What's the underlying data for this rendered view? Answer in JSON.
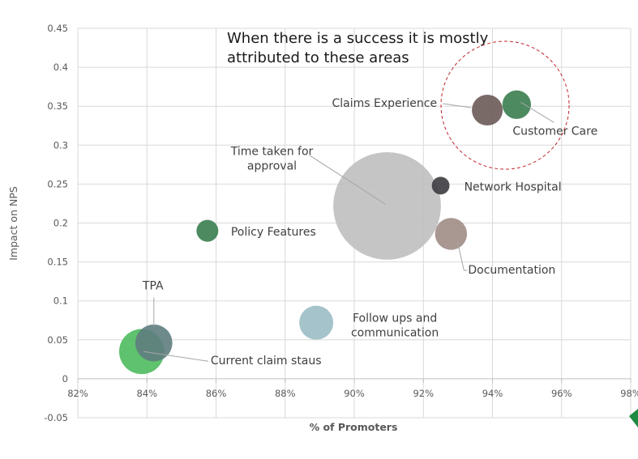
{
  "chart_data": {
    "type": "bubble",
    "title": "",
    "xlabel": "% of Promoters",
    "ylabel": "Impact on NPS",
    "xlim": [
      82,
      98
    ],
    "ylim": [
      -0.05,
      0.45
    ],
    "x_ticks": [
      82,
      84,
      86,
      88,
      90,
      92,
      94,
      96,
      98
    ],
    "x_tick_labels": [
      "82%",
      "84%",
      "86%",
      "88%",
      "90%",
      "92%",
      "94%",
      "96%",
      "98%"
    ],
    "y_ticks": [
      -0.05,
      0,
      0.05,
      0.1,
      0.15,
      0.2,
      0.25,
      0.3,
      0.35,
      0.4,
      0.45
    ],
    "y_tick_labels": [
      "-0.05",
      "0",
      "0.05",
      "0.1",
      "0.15",
      "0.2",
      "0.25",
      "0.3",
      "0.35",
      "0.4",
      "0.45"
    ],
    "grid": true,
    "annotation": [
      "When there is a success it is mostly",
      "attributed to these areas"
    ],
    "series": [
      {
        "name": "Claims Experience",
        "x": 93.85,
        "y": 0.345,
        "size": 7,
        "color": "#6b5a56",
        "label_lines": [
          "Claims Experience"
        ]
      },
      {
        "name": "Customer Care",
        "x": 94.7,
        "y": 0.352,
        "size": 6,
        "color": "#3a7d4f",
        "label_lines": [
          "Customer Care"
        ]
      },
      {
        "name": "Time taken for approval",
        "x": 90.95,
        "y": 0.222,
        "size": 85,
        "color": "#bfbfbf",
        "label_lines": [
          "Time taken for",
          "approval"
        ]
      },
      {
        "name": "Network Hospital",
        "x": 92.5,
        "y": 0.248,
        "size": 2.3,
        "color": "#3b3b40",
        "label_lines": [
          "Network Hospital"
        ]
      },
      {
        "name": "Documentation",
        "x": 92.8,
        "y": 0.186,
        "size": 7.5,
        "color": "#a08c86",
        "label_lines": [
          "Documentation"
        ]
      },
      {
        "name": "Policy Features",
        "x": 85.75,
        "y": 0.19,
        "size": 3.5,
        "color": "#3a7d4f",
        "label_lines": [
          "Policy Features"
        ]
      },
      {
        "name": "Follow ups and communication",
        "x": 88.9,
        "y": 0.072,
        "size": 8.5,
        "color": "#9bbcc4",
        "label_lines": [
          "Follow ups and",
          "communication"
        ]
      },
      {
        "name": "Current claim staus",
        "x": 83.85,
        "y": 0.035,
        "size": 15,
        "color": "#4cbb5e",
        "label_lines": [
          "Current claim staus"
        ]
      },
      {
        "name": "TPA",
        "x": 84.2,
        "y": 0.046,
        "size": 10,
        "color": "#5f7d7e",
        "label_lines": [
          "TPA"
        ]
      }
    ]
  }
}
